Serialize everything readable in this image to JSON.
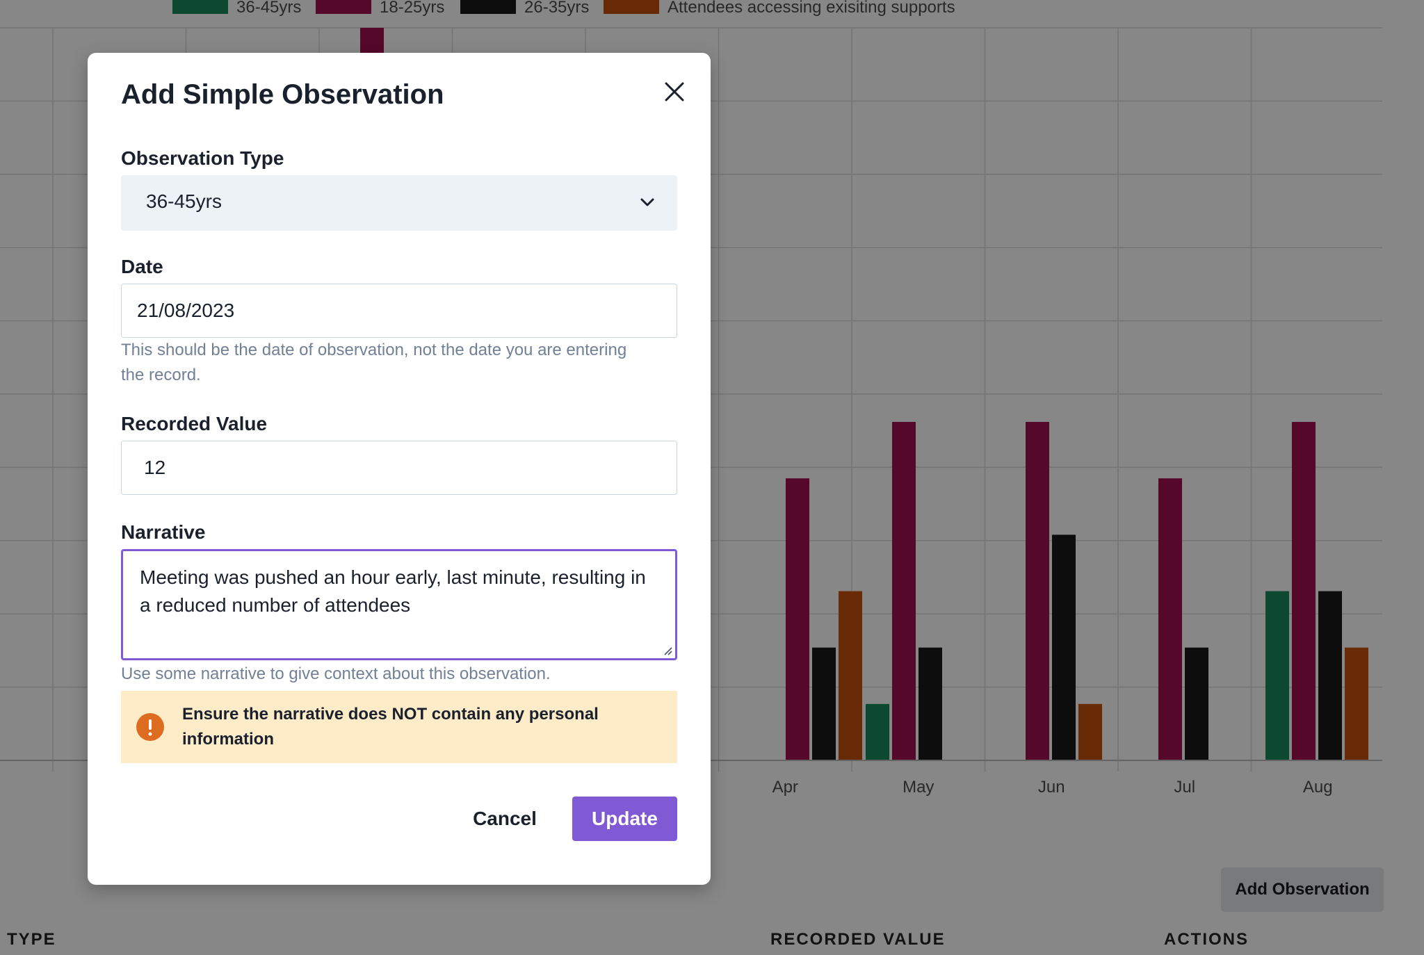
{
  "background": {
    "add_observation_label": "Add Observation",
    "table_headers": {
      "type": "TYPE",
      "recorded_value": "RECORDED VALUE",
      "actions": "ACTIONS"
    }
  },
  "chart_data": {
    "type": "bar",
    "title": "",
    "xlabel": "",
    "ylabel": "",
    "categories": [
      "Apr",
      "May",
      "Jun",
      "Jul",
      "Aug"
    ],
    "series": [
      {
        "name": "36-45yrs",
        "color": "#1a8a5e",
        "values": [
          0,
          1,
          0,
          0,
          3
        ]
      },
      {
        "name": "18-25yrs",
        "color": "#a0104f",
        "values": [
          5,
          6,
          6,
          5,
          6
        ]
      },
      {
        "name": "26-35yrs",
        "color": "#1a1a1a",
        "values": [
          2,
          2,
          4,
          2,
          3
        ]
      },
      {
        "name": "Attendees accessing exisiting supports",
        "color": "#c4520a",
        "values": [
          3,
          0,
          1,
          0,
          2
        ]
      }
    ],
    "ylim": [
      0,
      10
    ],
    "grid": true,
    "legend": "top"
  },
  "modal": {
    "title": "Add Simple Observation",
    "observation_type": {
      "label": "Observation Type",
      "value": "36-45yrs"
    },
    "date": {
      "label": "Date",
      "value": "21/08/2023",
      "helper": "This should be the date of observation, not the date you are entering the record."
    },
    "recorded_value": {
      "label": "Recorded Value",
      "value": "12"
    },
    "narrative": {
      "label": "Narrative",
      "value": "Meeting was pushed an hour early, last minute, resulting in a reduced number of attendees",
      "helper": "Use some narrative to give context about this observation."
    },
    "warning": "Ensure the narrative does NOT contain any personal information",
    "cancel_label": "Cancel",
    "update_label": "Update",
    "accent_color": "#805ad5",
    "warning_color": "#dd6b20"
  }
}
